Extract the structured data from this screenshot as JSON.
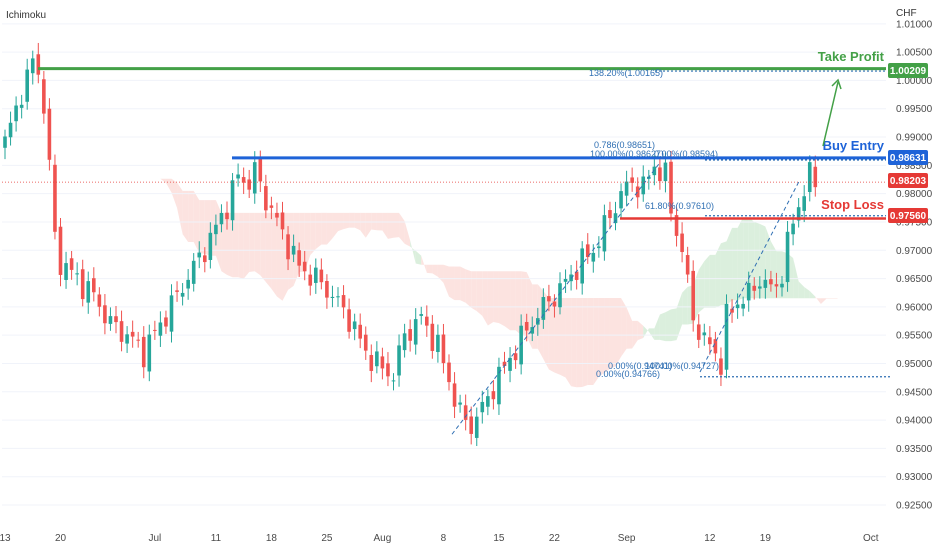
{
  "indicator_label": "Ichimoku",
  "currency": "CHF",
  "colors": {
    "bull": "#26a69a",
    "bear": "#ef5350",
    "take_profit": "#43a047",
    "buy_entry": "#1e63d8",
    "stop_loss": "#e53935",
    "current": "#e53935",
    "cloud_bull": "#cfe9d2",
    "cloud_bear": "#fbd9d6",
    "fib": "#2f6fb3",
    "price_axis": "#4a4a4a"
  },
  "annotations": {
    "take_profit": {
      "label": "Take Profit",
      "value": "1.00209"
    },
    "buy_entry": {
      "label": "Buy Entry",
      "value": "0.98631"
    },
    "stop_loss": {
      "label": "Stop Loss",
      "value": "0.97560"
    },
    "current_price": "0.98203"
  },
  "fib_labels": [
    "138.20%(1.00165)",
    "0.786(0.98651)",
    "100.00%(0.98627)",
    "0.00%(0.98594)",
    "61.80%(0.97610)",
    "0.00%(0.94741)",
    "100.00%(0.94727)",
    "0.00%(0.94766)"
  ],
  "chart_data": {
    "type": "candlestick",
    "indicator": "Ichimoku",
    "currency": "CHF",
    "y_range": [
      0.922,
      1.0135
    ],
    "y_ticks": [
      "1.01000",
      "1.00500",
      "1.00000",
      "0.99500",
      "0.99000",
      "0.98500",
      "0.98000",
      "0.97500",
      "0.97000",
      "0.96500",
      "0.96000",
      "0.95500",
      "0.95000",
      "0.94500",
      "0.94000",
      "0.93500",
      "0.93000",
      "0.92500"
    ],
    "y_tick_values": [
      1.01,
      1.005,
      1.0,
      0.995,
      0.99,
      0.985,
      0.98,
      0.975,
      0.97,
      0.965,
      0.96,
      0.955,
      0.95,
      0.945,
      0.94,
      0.935,
      0.93,
      0.925
    ],
    "x_ticks": [
      "13",
      "20",
      "Jul",
      "11",
      "18",
      "25",
      "Aug",
      "8",
      "15",
      "22",
      "Sep",
      "12",
      "19",
      "Oct"
    ],
    "x_tick_index": [
      0,
      10,
      27,
      38,
      48,
      58,
      68,
      79,
      89,
      99,
      112,
      127,
      137,
      156
    ],
    "bar_count": 147,
    "levels": [
      {
        "name": "Take Profit",
        "value": 1.00209
      },
      {
        "name": "Buy Entry",
        "value": 0.98631
      },
      {
        "name": "Stop Loss",
        "value": 0.9756
      },
      {
        "name": "Current",
        "value": 0.98203
      }
    ],
    "close_anchors": [
      [
        0,
        0.989
      ],
      [
        3,
        0.998
      ],
      [
        5,
        1.003
      ],
      [
        6,
        1.002
      ],
      [
        7,
        0.995
      ],
      [
        8,
        0.985
      ],
      [
        9,
        0.972
      ],
      [
        10,
        0.968
      ],
      [
        13,
        0.965
      ],
      [
        16,
        0.962
      ],
      [
        19,
        0.957
      ],
      [
        22,
        0.955
      ],
      [
        25,
        0.952
      ],
      [
        28,
        0.957
      ],
      [
        31,
        0.962
      ],
      [
        34,
        0.967
      ],
      [
        37,
        0.972
      ],
      [
        40,
        0.978
      ],
      [
        42,
        0.983
      ],
      [
        44,
        0.982
      ],
      [
        45,
        0.984
      ],
      [
        47,
        0.979
      ],
      [
        50,
        0.973
      ],
      [
        53,
        0.967
      ],
      [
        56,
        0.965
      ],
      [
        59,
        0.962
      ],
      [
        62,
        0.958
      ],
      [
        65,
        0.952
      ],
      [
        68,
        0.949
      ],
      [
        70,
        0.948
      ],
      [
        72,
        0.955
      ],
      [
        75,
        0.958
      ],
      [
        78,
        0.953
      ],
      [
        80,
        0.947
      ],
      [
        82,
        0.941
      ],
      [
        84,
        0.939
      ],
      [
        86,
        0.942
      ],
      [
        88,
        0.946
      ],
      [
        91,
        0.951
      ],
      [
        94,
        0.956
      ],
      [
        97,
        0.96
      ],
      [
        100,
        0.963
      ],
      [
        103,
        0.967
      ],
      [
        106,
        0.97
      ],
      [
        109,
        0.976
      ],
      [
        111,
        0.98
      ],
      [
        113,
        0.982
      ],
      [
        115,
        0.981
      ],
      [
        117,
        0.985
      ],
      [
        119,
        0.983
      ],
      [
        120,
        0.977
      ],
      [
        122,
        0.97
      ],
      [
        124,
        0.958
      ],
      [
        126,
        0.954
      ],
      [
        128,
        0.952
      ],
      [
        129,
        0.95
      ],
      [
        130,
        0.958
      ],
      [
        132,
        0.961
      ],
      [
        134,
        0.962
      ],
      [
        136,
        0.965
      ],
      [
        138,
        0.963
      ],
      [
        139,
        0.964
      ],
      [
        140,
        0.966
      ],
      [
        141,
        0.971
      ],
      [
        142,
        0.975
      ],
      [
        143,
        0.978
      ],
      [
        144,
        0.981
      ],
      [
        145,
        0.983
      ],
      [
        146,
        0.982
      ]
    ]
  }
}
